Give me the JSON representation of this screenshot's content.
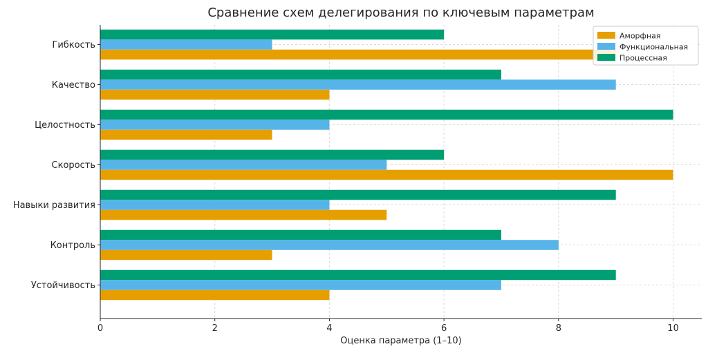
{
  "chart_data": {
    "type": "bar",
    "orientation": "horizontal",
    "title": "Сравнение схем делегирования по ключевым параметрам",
    "xlabel": "Оценка параметра (1–10)",
    "ylabel": "",
    "xlim": [
      0,
      10.5
    ],
    "xticks": [
      "0",
      "2",
      "4",
      "6",
      "8",
      "10"
    ],
    "grid": true,
    "legend_position": "top-right",
    "categories": [
      "Гибкость",
      "Качество",
      "Целостность",
      "Скорость",
      "Навыки развития",
      "Контроль",
      "Устойчивость"
    ],
    "series": [
      {
        "name": "Аморфная",
        "color": "#E69F00",
        "values": [
          9,
          4,
          3,
          10,
          5,
          3,
          4
        ]
      },
      {
        "name": "Функциональная",
        "color": "#56B4E9",
        "values": [
          3,
          9,
          4,
          5,
          4,
          8,
          7
        ]
      },
      {
        "name": "Процессная",
        "color": "#009E73",
        "values": [
          6,
          7,
          10,
          6,
          9,
          7,
          9
        ]
      }
    ]
  }
}
